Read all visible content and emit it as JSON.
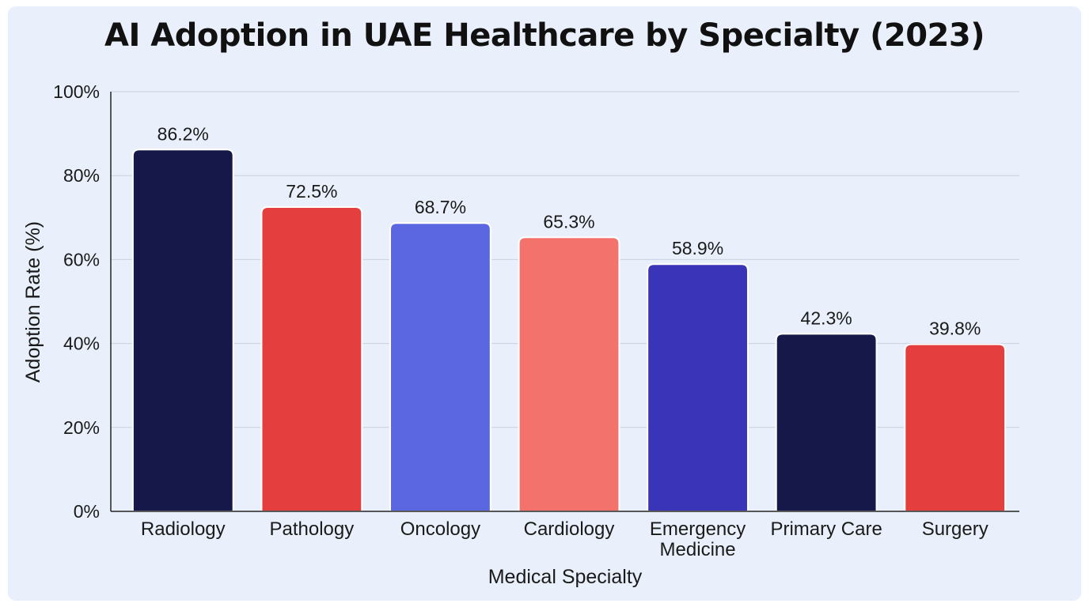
{
  "chart_data": {
    "type": "bar",
    "title": "AI Adoption in UAE Healthcare by Specialty (2023)",
    "xlabel": "Medical Specialty",
    "ylabel": "Adoption Rate (%)",
    "categories": [
      "Radiology",
      "Pathology",
      "Oncology",
      "Cardiology",
      "Emergency Medicine",
      "Primary Care",
      "Surgery"
    ],
    "category_lines": [
      [
        "Radiology"
      ],
      [
        "Pathology"
      ],
      [
        "Oncology"
      ],
      [
        "Cardiology"
      ],
      [
        "Emergency",
        "Medicine"
      ],
      [
        "Primary Care"
      ],
      [
        "Surgery"
      ]
    ],
    "values": [
      86.2,
      72.5,
      68.7,
      65.3,
      58.9,
      42.3,
      39.8
    ],
    "value_labels": [
      "86.2%",
      "72.5%",
      "68.7%",
      "65.3%",
      "58.9%",
      "42.3%",
      "39.8%"
    ],
    "colors": [
      "#16184a",
      "#e53e3e",
      "#5b67e0",
      "#f3726b",
      "#3a34b8",
      "#16184a",
      "#e53e3e"
    ],
    "ylim": [
      0,
      100
    ],
    "yticks": [
      0,
      20,
      40,
      60,
      80,
      100
    ],
    "ytick_labels": [
      "0%",
      "20%",
      "40%",
      "60%",
      "80%",
      "100%"
    ],
    "grid": true,
    "legend": "none"
  }
}
